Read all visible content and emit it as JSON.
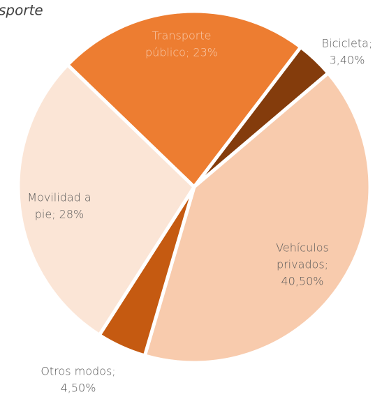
{
  "chart_data": {
    "type": "pie",
    "title": "sporte",
    "value_labels": [
      [
        "Transporte",
        "público; 23%"
      ],
      [
        "Bicicleta;",
        "3,40%"
      ],
      [
        "Vehículos",
        "privados;",
        "40,50%"
      ],
      [
        "Otros modos;",
        "4,50%"
      ],
      [
        "Movilidad a",
        "pie; 28%"
      ]
    ],
    "values": [
      23,
      3.4,
      40.5,
      4.5,
      28
    ],
    "colors": [
      "#ed7d31",
      "#843c0c",
      "#f8cbad",
      "#c55a11",
      "#fbe5d6"
    ]
  }
}
